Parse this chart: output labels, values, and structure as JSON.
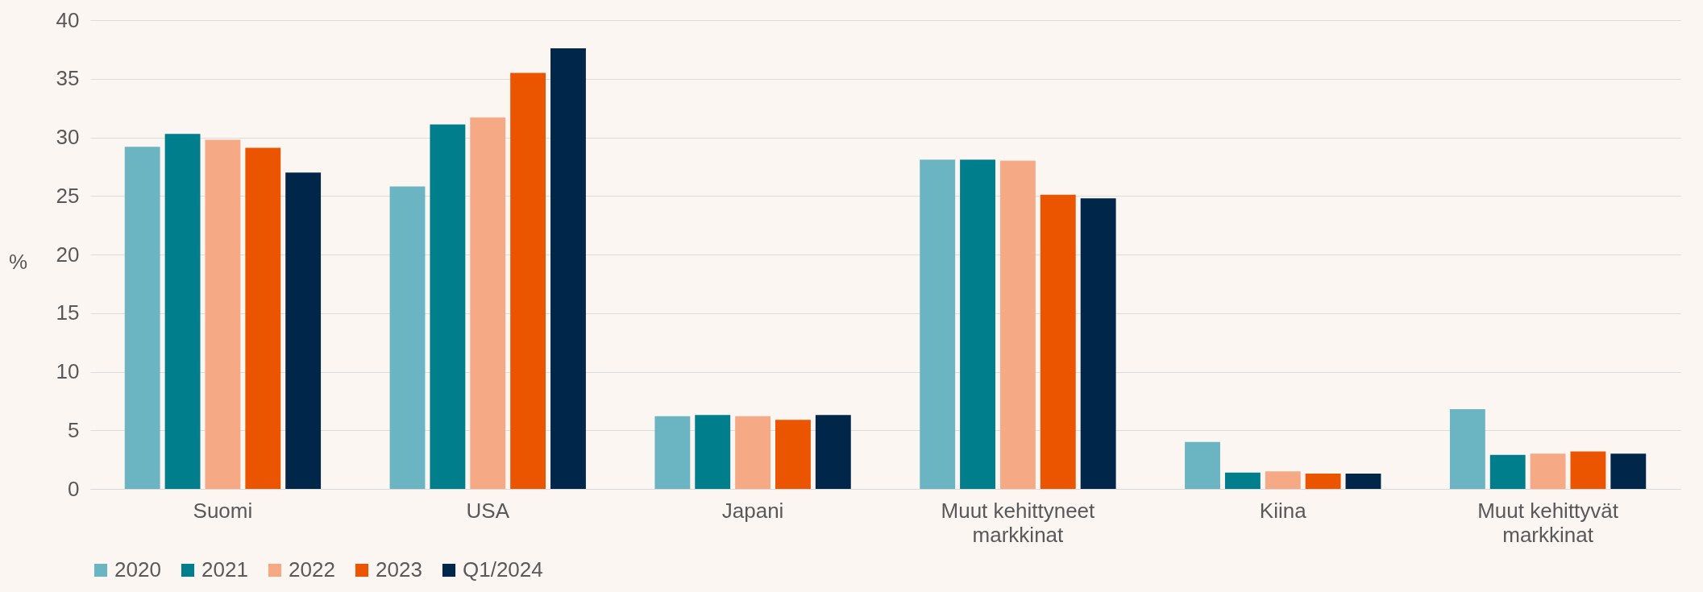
{
  "chart_data": {
    "type": "bar",
    "ylabel": "%",
    "categories": [
      "Suomi",
      "USA",
      "Japani",
      "Muut kehittyneet markkinat",
      "Kiina",
      "Muut kehittyvät markkinat"
    ],
    "series": [
      {
        "name": "2020",
        "color": "#6bb5c2",
        "values": [
          29.2,
          25.8,
          6.2,
          28.1,
          4.0,
          6.8
        ]
      },
      {
        "name": "2021",
        "color": "#007e8c",
        "values": [
          30.3,
          31.1,
          6.3,
          28.1,
          1.4,
          2.9
        ]
      },
      {
        "name": "2022",
        "color": "#f6a985",
        "values": [
          29.8,
          31.7,
          6.2,
          28.0,
          1.5,
          3.0
        ]
      },
      {
        "name": "2023",
        "color": "#eb5500",
        "values": [
          29.1,
          35.5,
          5.9,
          25.1,
          1.3,
          3.2
        ]
      },
      {
        "name": "Q1/2024",
        "color": "#00274a",
        "values": [
          27.0,
          37.6,
          6.3,
          24.8,
          1.3,
          3.0
        ]
      }
    ],
    "ylim": [
      0,
      40
    ],
    "yticks": [
      0,
      5,
      10,
      15,
      20,
      25,
      30,
      35,
      40
    ],
    "grid": "y",
    "legend": "bottom"
  }
}
